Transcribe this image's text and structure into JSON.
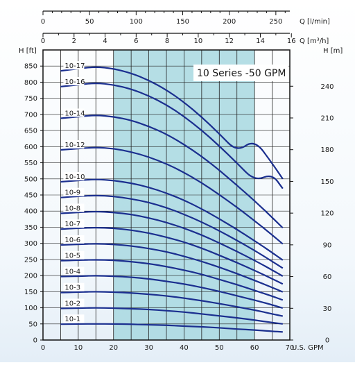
{
  "chart_data": {
    "type": "line",
    "title": "10 Series -50 GPM",
    "bep_band": [
      20,
      60
    ],
    "colors": {
      "curve": "#1b2f8f",
      "band": "#a8d8e0",
      "axis": "#111111",
      "grid": "#222222"
    },
    "axes": {
      "gpm": {
        "label": "U.S. GPM",
        "range": [
          0,
          70
        ],
        "ticks": [
          0,
          10,
          20,
          30,
          40,
          50,
          60,
          70
        ]
      },
      "feet": {
        "label": "H [ft]",
        "range": [
          0,
          900
        ],
        "ticks": [
          0,
          50,
          100,
          150,
          200,
          250,
          300,
          350,
          400,
          450,
          500,
          550,
          600,
          650,
          700,
          750,
          800,
          850
        ]
      },
      "meters": {
        "label": "H [m]",
        "range": [
          0,
          274.3
        ],
        "ticks": [
          0,
          30,
          60,
          90,
          120,
          150,
          180,
          210,
          240
        ]
      },
      "lmin": {
        "label": "Q [l/min]",
        "range": [
          0,
          265
        ],
        "ticks": [
          0,
          50,
          100,
          150,
          200,
          250
        ]
      },
      "m3h": {
        "label": "Q [m³/h]",
        "range": [
          0,
          15.9
        ],
        "ticks": [
          0,
          2,
          4,
          6,
          8,
          10,
          12,
          14,
          16
        ]
      }
    },
    "series": [
      {
        "name": "10-17",
        "x": [
          5,
          10,
          15,
          20,
          25,
          30,
          35,
          40,
          45,
          50,
          55,
          60,
          65,
          68
        ],
        "y": [
          835,
          842,
          848,
          842,
          828,
          806,
          776,
          738,
          692,
          640,
          584,
          622,
          548,
          500
        ]
      },
      {
        "name": "10-16",
        "x": [
          5,
          10,
          15,
          20,
          25,
          30,
          35,
          40,
          45,
          50,
          55,
          60,
          65,
          68
        ],
        "y": [
          786,
          792,
          798,
          792,
          779,
          758,
          730,
          694,
          651,
          602,
          549,
          494,
          515,
          470
        ]
      },
      {
        "name": "10-14",
        "x": [
          5,
          10,
          15,
          20,
          25,
          30,
          35,
          40,
          45,
          50,
          55,
          60,
          65,
          68
        ],
        "y": [
          688,
          693,
          698,
          693,
          682,
          663,
          639,
          607,
          570,
          527,
          480,
          432,
          380,
          348
        ]
      },
      {
        "name": "10-12",
        "x": [
          5,
          10,
          15,
          20,
          25,
          30,
          35,
          40,
          45,
          50,
          55,
          60,
          65,
          68
        ],
        "y": [
          590,
          594,
          598,
          594,
          584,
          568,
          547,
          520,
          488,
          451,
          412,
          370,
          326,
          298
        ]
      },
      {
        "name": "10-10",
        "x": [
          5,
          10,
          15,
          20,
          25,
          30,
          35,
          40,
          45,
          50,
          55,
          60,
          65,
          68
        ],
        "y": [
          491,
          495,
          499,
          495,
          487,
          474,
          456,
          434,
          407,
          376,
          343,
          308,
          271,
          248
        ]
      },
      {
        "name": "10-9",
        "x": [
          5,
          10,
          15,
          20,
          25,
          30,
          35,
          40,
          45,
          50,
          55,
          60,
          65,
          68
        ],
        "y": [
          442,
          446,
          449,
          446,
          438,
          427,
          411,
          390,
          366,
          339,
          309,
          278,
          244,
          223
        ]
      },
      {
        "name": "10-8",
        "x": [
          5,
          10,
          15,
          20,
          25,
          30,
          35,
          40,
          45,
          50,
          55,
          60,
          65,
          68
        ],
        "y": [
          393,
          396,
          399,
          396,
          390,
          379,
          365,
          347,
          326,
          301,
          275,
          247,
          217,
          198
        ]
      },
      {
        "name": "10-7",
        "x": [
          5,
          10,
          15,
          20,
          25,
          30,
          35,
          40,
          45,
          50,
          55,
          60,
          65,
          68
        ],
        "y": [
          344,
          347,
          349,
          347,
          341,
          332,
          319,
          304,
          285,
          263,
          240,
          216,
          190,
          174
        ]
      },
      {
        "name": "10-6",
        "x": [
          5,
          10,
          15,
          20,
          25,
          30,
          35,
          40,
          45,
          50,
          55,
          60,
          65,
          68
        ],
        "y": [
          295,
          297,
          299,
          297,
          292,
          284,
          274,
          260,
          244,
          226,
          206,
          185,
          163,
          149
        ]
      },
      {
        "name": "10-5",
        "x": [
          5,
          10,
          15,
          20,
          25,
          30,
          35,
          40,
          45,
          50,
          55,
          60,
          65,
          68
        ],
        "y": [
          246,
          248,
          249,
          248,
          243,
          237,
          228,
          217,
          204,
          188,
          172,
          154,
          136,
          124
        ]
      },
      {
        "name": "10-4",
        "x": [
          5,
          10,
          15,
          20,
          25,
          30,
          35,
          40,
          45,
          50,
          55,
          60,
          65,
          68
        ],
        "y": [
          197,
          198,
          200,
          198,
          195,
          190,
          182,
          174,
          163,
          151,
          137,
          124,
          109,
          99
        ]
      },
      {
        "name": "10-3",
        "x": [
          5,
          10,
          15,
          20,
          25,
          30,
          35,
          40,
          45,
          50,
          55,
          60,
          65,
          68
        ],
        "y": [
          147,
          149,
          150,
          149,
          146,
          142,
          137,
          130,
          122,
          113,
          103,
          93,
          81,
          74
        ]
      },
      {
        "name": "10-2",
        "x": [
          5,
          10,
          15,
          20,
          25,
          30,
          35,
          40,
          45,
          50,
          55,
          60,
          65,
          68
        ],
        "y": [
          98,
          99,
          100,
          99,
          97,
          95,
          91,
          87,
          81,
          75,
          69,
          62,
          54,
          50
        ]
      },
      {
        "name": "10-1",
        "x": [
          5,
          10,
          15,
          20,
          25,
          30,
          35,
          40,
          45,
          50,
          55,
          60,
          65,
          68
        ],
        "y": [
          49,
          50,
          50,
          50,
          49,
          47,
          46,
          43,
          41,
          38,
          34,
          31,
          27,
          25
        ]
      }
    ]
  }
}
